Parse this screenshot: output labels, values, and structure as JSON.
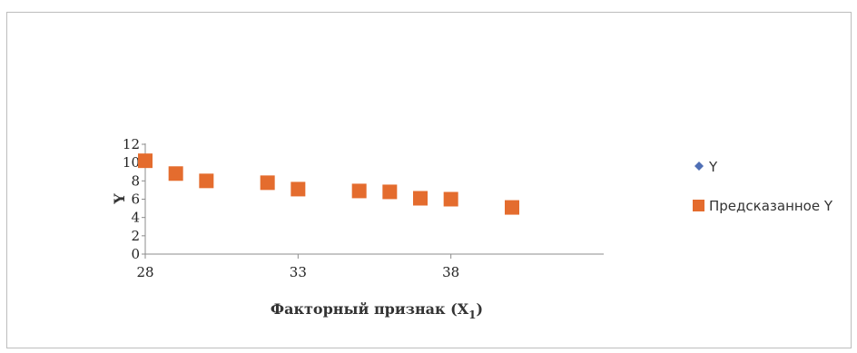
{
  "chart_data": {
    "type": "scatter",
    "xlabel": "Факторный признак (X",
    "xlabel_sub": "1",
    "xlabel_close": ")",
    "ylabel": "Y",
    "xlim": [
      28,
      43
    ],
    "ylim": [
      0,
      12
    ],
    "x_ticks": [
      28,
      33,
      38
    ],
    "y_ticks": [
      0,
      2,
      4,
      6,
      8,
      10,
      12
    ],
    "legend_position": "right",
    "series": [
      {
        "name": "Y",
        "marker": "diamond",
        "color": "#4F6FB5",
        "points": [
          {
            "x": 28,
            "y": 10.1
          },
          {
            "x": 29,
            "y": 9.0
          },
          {
            "x": 30,
            "y": 7.9
          },
          {
            "x": 32,
            "y": 7.8
          },
          {
            "x": 33,
            "y": 7.2
          },
          {
            "x": 35,
            "y": 7.2
          },
          {
            "x": 36,
            "y": 7.1
          },
          {
            "x": 37,
            "y": 6.3
          },
          {
            "x": 38,
            "y": 6.0
          },
          {
            "x": 40,
            "y": 5.1
          }
        ]
      },
      {
        "name": "Предсказанное Y",
        "marker": "square",
        "color": "#E46C2E",
        "points": [
          {
            "x": 28,
            "y": 10.2
          },
          {
            "x": 29,
            "y": 8.8
          },
          {
            "x": 30,
            "y": 8.0
          },
          {
            "x": 32,
            "y": 7.8
          },
          {
            "x": 33,
            "y": 7.1
          },
          {
            "x": 35,
            "y": 6.9
          },
          {
            "x": 36,
            "y": 6.8
          },
          {
            "x": 37,
            "y": 6.1
          },
          {
            "x": 38,
            "y": 6.0
          },
          {
            "x": 40,
            "y": 5.1
          }
        ]
      }
    ]
  }
}
